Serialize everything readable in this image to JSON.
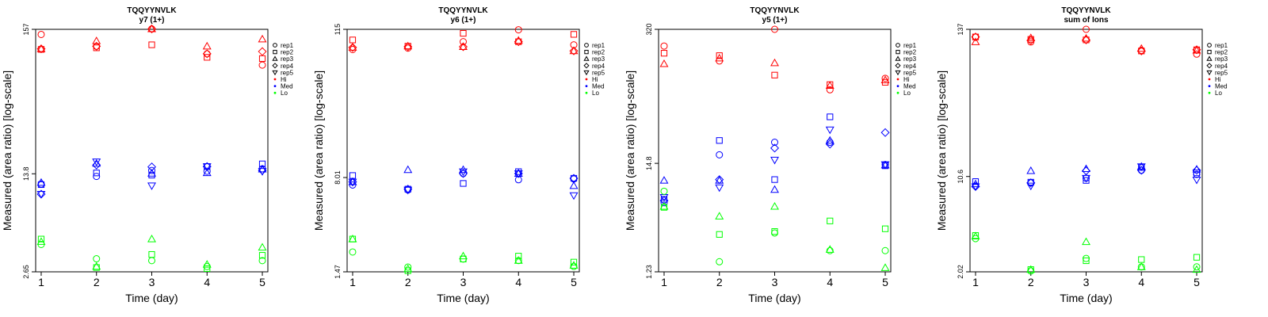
{
  "colors": {
    "Hi": "#ff0000",
    "Med": "#0000ff",
    "Lo": "#00ff00"
  },
  "legend": {
    "reps": [
      {
        "label": "rep1",
        "marker": "circle"
      },
      {
        "label": "rep2",
        "marker": "square"
      },
      {
        "label": "rep3",
        "marker": "triangle-up"
      },
      {
        "label": "rep4",
        "marker": "diamond"
      },
      {
        "label": "rep5",
        "marker": "triangle-down"
      }
    ],
    "levels": [
      "Hi",
      "Med",
      "Lo"
    ]
  },
  "chart_data": [
    {
      "type": "scatter",
      "title": "TQQYYNVLK",
      "subtitle": "y7 (1+)",
      "xlabel": "Time (day)",
      "ylabel": "Measured (area ratio) [log-scale]",
      "log_y": true,
      "xlim": [
        0.9,
        5.1
      ],
      "ylim": [
        2.65,
        157
      ],
      "x_ticks": [
        "1",
        "2",
        "3",
        "4",
        "5"
      ],
      "y_ticks": [
        "2.65",
        "13.8",
        "157"
      ],
      "legend_position": "right",
      "series": [
        {
          "name": "rep1",
          "level": "Hi",
          "x": [
            1,
            2,
            3,
            4,
            5
          ],
          "y": [
            144,
            118,
            158,
            104,
            86
          ]
        },
        {
          "name": "rep2",
          "level": "Hi",
          "x": [
            1,
            2,
            3,
            4,
            5
          ],
          "y": [
            112,
            115,
            121,
            98,
            96
          ]
        },
        {
          "name": "rep3",
          "level": "Hi",
          "x": [
            1,
            2,
            3,
            4,
            5
          ],
          "y": [
            113,
            129,
            158,
            118,
            133
          ]
        },
        {
          "name": "rep4",
          "level": "Hi",
          "x": [
            1,
            2,
            3,
            4,
            5
          ],
          "y": [
            113,
            118,
            158,
            104,
            108
          ]
        },
        {
          "name": "rep1",
          "level": "Med",
          "x": [
            1,
            2,
            3,
            4,
            5
          ],
          "y": [
            11.6,
            13.2,
            14.6,
            14.4,
            15.0
          ]
        },
        {
          "name": "rep2",
          "level": "Med",
          "x": [
            1,
            2,
            3,
            4,
            5
          ],
          "y": [
            11.5,
            14.0,
            13.5,
            15.6,
            16.3
          ]
        },
        {
          "name": "rep3",
          "level": "Med",
          "x": [
            1,
            2,
            3,
            4,
            5
          ],
          "y": [
            11.9,
            16.4,
            13.9,
            14.0,
            14.9
          ]
        },
        {
          "name": "rep4",
          "level": "Med",
          "x": [
            1,
            2,
            3,
            4,
            5
          ],
          "y": [
            9.8,
            16.0,
            15.5,
            15.6,
            14.6
          ]
        },
        {
          "name": "rep5",
          "level": "Med",
          "x": [
            1,
            2,
            3,
            4,
            5
          ],
          "y": [
            9.8,
            16.9,
            11.3,
            15.6,
            14.4
          ]
        },
        {
          "name": "rep1",
          "level": "Lo",
          "x": [
            1,
            2,
            3,
            4,
            5
          ],
          "y": [
            4.2,
            3.3,
            3.2,
            2.9,
            3.2
          ]
        },
        {
          "name": "rep2",
          "level": "Lo",
          "x": [
            1,
            2,
            3,
            4,
            5
          ],
          "y": [
            4.6,
            2.85,
            3.55,
            2.8,
            3.5
          ]
        },
        {
          "name": "rep3",
          "level": "Lo",
          "x": [
            1,
            2,
            3,
            4,
            5
          ],
          "y": [
            4.4,
            2.9,
            4.6,
            3.0,
            4.0
          ]
        }
      ]
    },
    {
      "type": "scatter",
      "title": "TQQYYNVLK",
      "subtitle": "y6 (1+)",
      "xlabel": "Time (day)",
      "ylabel": "Measured (area ratio) [log-scale]",
      "log_y": true,
      "xlim": [
        0.9,
        5.1
      ],
      "ylim": [
        1.47,
        115
      ],
      "x_ticks": [
        "1",
        "2",
        "3",
        "4",
        "5"
      ],
      "y_ticks": [
        "1.47",
        "8.01",
        "115"
      ],
      "legend_position": "right",
      "series": [
        {
          "name": "rep1",
          "level": "Hi",
          "x": [
            1,
            2,
            3,
            4,
            5
          ],
          "y": [
            80,
            82,
            92,
            114,
            87
          ]
        },
        {
          "name": "rep2",
          "level": "Hi",
          "x": [
            1,
            2,
            3,
            4,
            5
          ],
          "y": [
            95,
            85,
            107,
            92,
            105
          ]
        },
        {
          "name": "rep3",
          "level": "Hi",
          "x": [
            1,
            2,
            3,
            4,
            5
          ],
          "y": [
            83,
            85,
            84,
            94,
            78
          ]
        },
        {
          "name": "rep4",
          "level": "Hi",
          "x": [
            1,
            2,
            3,
            4,
            5
          ],
          "y": [
            83,
            84,
            84,
            92,
            78
          ]
        },
        {
          "name": "rep1",
          "level": "Med",
          "x": [
            1,
            2,
            3,
            4,
            5
          ],
          "y": [
            7.0,
            6.4,
            8.6,
            7.7,
            7.8
          ]
        },
        {
          "name": "rep2",
          "level": "Med",
          "x": [
            1,
            2,
            3,
            4,
            5
          ],
          "y": [
            8.3,
            6.5,
            7.2,
            8.9,
            7.9
          ]
        },
        {
          "name": "rep3",
          "level": "Med",
          "x": [
            1,
            2,
            3,
            4,
            5
          ],
          "y": [
            7.4,
            9.2,
            9.2,
            8.6,
            6.9
          ]
        },
        {
          "name": "rep4",
          "level": "Med",
          "x": [
            1,
            2,
            3,
            4,
            5
          ],
          "y": [
            7.4,
            6.5,
            8.6,
            8.6,
            7.9
          ]
        },
        {
          "name": "rep5",
          "level": "Med",
          "x": [
            1,
            2,
            3,
            4,
            5
          ],
          "y": [
            7.4,
            6.4,
            8.9,
            8.6,
            5.8
          ]
        },
        {
          "name": "rep1",
          "level": "Lo",
          "x": [
            1,
            2,
            3,
            4,
            5
          ],
          "y": [
            2.1,
            1.6,
            1.85,
            1.8,
            1.62
          ]
        },
        {
          "name": "rep2",
          "level": "Lo",
          "x": [
            1,
            2,
            3,
            4,
            5
          ],
          "y": [
            2.65,
            1.5,
            1.85,
            1.95,
            1.75
          ]
        },
        {
          "name": "rep3",
          "level": "Lo",
          "x": [
            1,
            2,
            3,
            4,
            5
          ],
          "y": [
            2.65,
            1.55,
            1.95,
            1.8,
            1.65
          ]
        }
      ]
    },
    {
      "type": "scatter",
      "title": "TQQYYNVLK",
      "subtitle": "y5 (1+)",
      "xlabel": "Time (day)",
      "ylabel": "Measured (area ratio) [log-scale]",
      "log_y": true,
      "xlim": [
        0.9,
        5.1
      ],
      "ylim": [
        1.23,
        320
      ],
      "x_ticks": [
        "1",
        "2",
        "3",
        "4",
        "5"
      ],
      "y_ticks": [
        "1.23",
        "14.8",
        "320"
      ],
      "legend_position": "right",
      "series": [
        {
          "name": "rep1",
          "level": "Hi",
          "x": [
            1,
            2,
            3,
            4,
            5
          ],
          "y": [
            218,
            155,
            320,
            80,
            104
          ]
        },
        {
          "name": "rep2",
          "level": "Hi",
          "x": [
            1,
            2,
            3,
            4,
            5
          ],
          "y": [
            185,
            175,
            112,
            90,
            95
          ]
        },
        {
          "name": "rep3",
          "level": "Hi",
          "x": [
            1,
            2,
            3,
            4,
            5
          ],
          "y": [
            145,
            165,
            148,
            88,
            100
          ]
        },
        {
          "name": "rep1",
          "level": "Med",
          "x": [
            1,
            2,
            3,
            4,
            5
          ],
          "y": [
            6.0,
            18.0,
            24.0,
            24.0,
            14.4
          ]
        },
        {
          "name": "rep2",
          "level": "Med",
          "x": [
            1,
            2,
            3,
            4,
            5
          ],
          "y": [
            6.5,
            25.0,
            10.2,
            43.0,
            14.0
          ]
        },
        {
          "name": "rep3",
          "level": "Med",
          "x": [
            1,
            2,
            3,
            4,
            5
          ],
          "y": [
            10.0,
            10.0,
            8.1,
            25.0,
            14.2
          ]
        },
        {
          "name": "rep4",
          "level": "Med",
          "x": [
            1,
            2,
            3,
            4,
            5
          ],
          "y": [
            6.3,
            10.2,
            21.0,
            23.0,
            30.0
          ]
        },
        {
          "name": "rep5",
          "level": "Med",
          "x": [
            1,
            2,
            3,
            4,
            5
          ],
          "y": [
            6.8,
            8.5,
            16.0,
            32.0,
            14.4
          ]
        },
        {
          "name": "rep1",
          "level": "Lo",
          "x": [
            1,
            2,
            3,
            4,
            5
          ],
          "y": [
            7.8,
            1.55,
            3.0,
            2.0,
            2.0
          ]
        },
        {
          "name": "rep2",
          "level": "Lo",
          "x": [
            1,
            2,
            3,
            4,
            5
          ],
          "y": [
            5.4,
            2.9,
            3.1,
            3.95,
            3.3
          ]
        },
        {
          "name": "rep3",
          "level": "Lo",
          "x": [
            1,
            2,
            3,
            4,
            5
          ],
          "y": [
            5.5,
            4.4,
            5.5,
            2.05,
            1.35
          ]
        }
      ]
    },
    {
      "type": "scatter",
      "title": "TQQYYNVLK",
      "subtitle": "sum of Ions",
      "xlabel": "Time (day)",
      "ylabel": "Measured (area ratio) [log-scale]",
      "log_y": true,
      "xlim": [
        0.9,
        5.1
      ],
      "ylim": [
        2.02,
        137
      ],
      "x_ticks": [
        "1",
        "2",
        "3",
        "4",
        "5"
      ],
      "y_ticks": [
        "2.02",
        "10.6",
        "137"
      ],
      "legend_position": "right",
      "series": [
        {
          "name": "rep1",
          "level": "Hi",
          "x": [
            1,
            2,
            3,
            4,
            5
          ],
          "y": [
            120,
            110,
            137,
            95,
            89
          ]
        },
        {
          "name": "rep2",
          "level": "Hi",
          "x": [
            1,
            2,
            3,
            4,
            5
          ],
          "y": [
            120,
            115,
            114,
            94,
            96
          ]
        },
        {
          "name": "rep3",
          "level": "Hi",
          "x": [
            1,
            2,
            3,
            4,
            5
          ],
          "y": [
            110,
            118,
            117,
            98,
            95
          ]
        },
        {
          "name": "rep4",
          "level": "Hi",
          "x": [
            1,
            2,
            3,
            4,
            5
          ],
          "y": [
            120,
            113,
            114,
            94,
            96
          ]
        },
        {
          "name": "rep1",
          "level": "Med",
          "x": [
            1,
            2,
            3,
            4,
            5
          ],
          "y": [
            9.0,
            9.5,
            10.3,
            11.8,
            11.0
          ]
        },
        {
          "name": "rep2",
          "level": "Med",
          "x": [
            1,
            2,
            3,
            4,
            5
          ],
          "y": [
            9.7,
            9.6,
            9.9,
            12.4,
            11.3
          ]
        },
        {
          "name": "rep3",
          "level": "Med",
          "x": [
            1,
            2,
            3,
            4,
            5
          ],
          "y": [
            9.3,
            11.7,
            12.1,
            12.6,
            12.0
          ]
        },
        {
          "name": "rep4",
          "level": "Med",
          "x": [
            1,
            2,
            3,
            4,
            5
          ],
          "y": [
            8.9,
            9.5,
            11.7,
            11.8,
            11.8
          ]
        },
        {
          "name": "rep5",
          "level": "Med",
          "x": [
            1,
            2,
            3,
            4,
            5
          ],
          "y": [
            8.9,
            9.0,
            10.3,
            12.6,
            10.0
          ]
        },
        {
          "name": "rep1",
          "level": "Lo",
          "x": [
            1,
            2,
            3,
            4,
            5
          ],
          "y": [
            3.6,
            2.05,
            2.55,
            2.2,
            2.2
          ]
        },
        {
          "name": "rep2",
          "level": "Lo",
          "x": [
            1,
            2,
            3,
            4,
            5
          ],
          "y": [
            3.8,
            2.1,
            2.45,
            2.5,
            2.6
          ]
        },
        {
          "name": "rep3",
          "level": "Lo",
          "x": [
            1,
            2,
            3,
            4,
            5
          ],
          "y": [
            3.75,
            2.1,
            3.4,
            2.2,
            2.1
          ]
        }
      ]
    }
  ]
}
